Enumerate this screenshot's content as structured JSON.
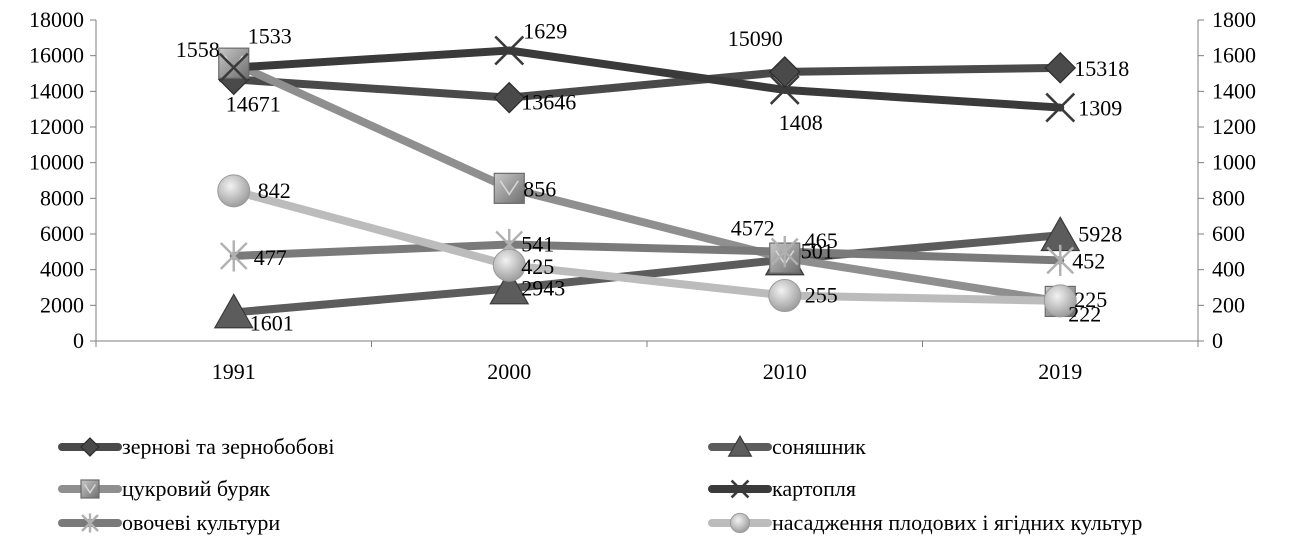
{
  "chart_data": {
    "type": "line",
    "categories": [
      "1991",
      "2000",
      "2010",
      "2019"
    ],
    "y_left": {
      "min": 0,
      "max": 18000,
      "step": 2000
    },
    "y_right": {
      "min": 0,
      "max": 1800,
      "step": 200
    },
    "legend_placement": "bottom",
    "gridlines": false,
    "series": [
      {
        "id": "grain",
        "name": "зернові та зернобобові",
        "axis": "left",
        "values": [
          14671,
          13646,
          15090,
          15318
        ],
        "labels": [
          "14671",
          "13646",
          "15090",
          "15318"
        ],
        "color": "#4a4a4a",
        "marker": "diamond"
      },
      {
        "id": "sunflower",
        "name": "соняшник",
        "axis": "left",
        "values": [
          1601,
          2943,
          4572,
          5928
        ],
        "labels": [
          "1601",
          "2943",
          "4572",
          "5928"
        ],
        "color": "#5c5c5c",
        "marker": "triangle"
      },
      {
        "id": "sugarbeet",
        "name": "цукровий буряк",
        "axis": "right",
        "values": [
          1558,
          856,
          465,
          222
        ],
        "labels": [
          "1558",
          "856",
          "465",
          "222"
        ],
        "color": "#8f8f8f",
        "marker": "square"
      },
      {
        "id": "potato",
        "name": "картопля",
        "axis": "right",
        "values": [
          1533,
          1629,
          1408,
          1309
        ],
        "labels": [
          "1533",
          "1629",
          "1408",
          "1309"
        ],
        "color": "#3a3a3a",
        "marker": "x"
      },
      {
        "id": "vegetables",
        "name": "овочеві культури",
        "axis": "right",
        "values": [
          477,
          541,
          501,
          452
        ],
        "labels": [
          "477",
          "541",
          "501",
          "452"
        ],
        "color": "#7a7a7a",
        "marker": "star"
      },
      {
        "id": "orchards",
        "name": "насадження плодових і ягідних культур",
        "axis": "right",
        "values": [
          842,
          425,
          255,
          225
        ],
        "labels": [
          "842",
          "425",
          "255",
          "225"
        ],
        "color": "#bcbcbc",
        "marker": "circle"
      }
    ]
  }
}
